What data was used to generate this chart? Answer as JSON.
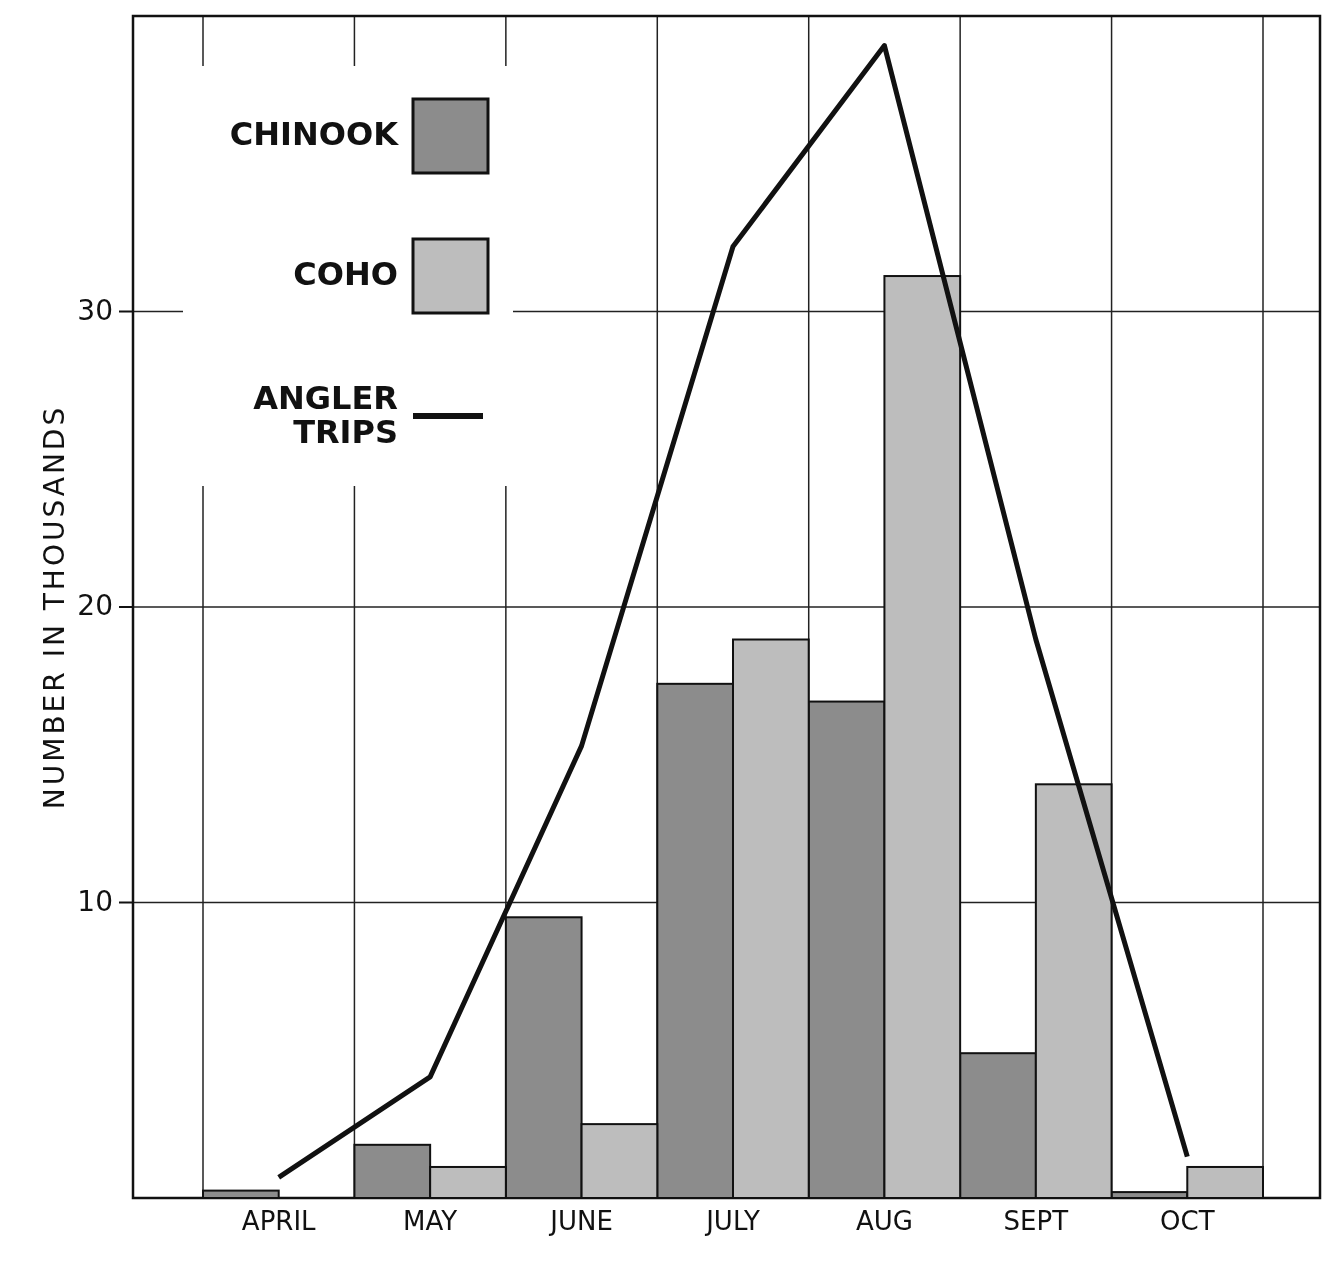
{
  "chart_data": {
    "type": "bar",
    "ylabel": "NUMBER IN THOUSANDS",
    "categories": [
      "APRIL",
      "MAY",
      "JUNE",
      "JULY",
      "AUG",
      "SEPT",
      "OCT"
    ],
    "series": [
      {
        "name": "CHINOOK",
        "color": "#8c8c8c",
        "values": [
          0.25,
          1.8,
          9.5,
          17.4,
          16.8,
          4.9,
          0.2
        ]
      },
      {
        "name": "COHO",
        "color": "#bdbdbd",
        "values": [
          0,
          1.05,
          2.5,
          18.9,
          31.2,
          14.0,
          1.05
        ]
      },
      {
        "name": "ANGLER TRIPS",
        "type": "line",
        "color": "#111111",
        "values": [
          0.7,
          4.1,
          15.3,
          32.2,
          39.0,
          18.9,
          1.4
        ]
      }
    ],
    "ylim": [
      0,
      40
    ],
    "yticks": [
      10,
      20,
      30
    ],
    "grid": true,
    "legend": "top left",
    "marker": "none",
    "line_style": "solid"
  }
}
